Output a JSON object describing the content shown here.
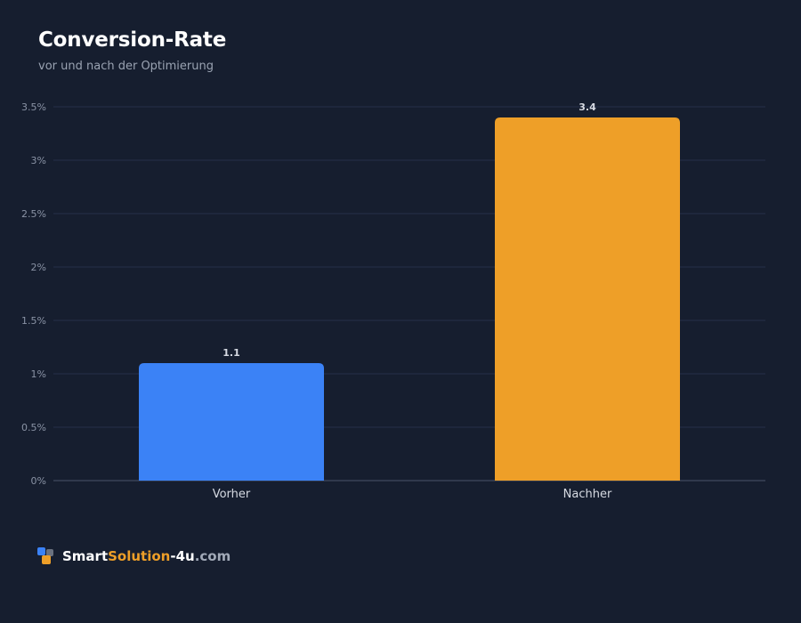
{
  "header": {
    "title": "Conversion-Rate",
    "subtitle": "vor und nach der Optimierung"
  },
  "chart_data": {
    "type": "bar",
    "categories": [
      "Vorher",
      "Nachher"
    ],
    "values": [
      1.1,
      3.4
    ],
    "value_labels": [
      "1.1",
      "3.4"
    ],
    "bar_colors": [
      "#3b82f6",
      "#ee9f28"
    ],
    "ylim": [
      0,
      3.5
    ],
    "yticks": [
      0,
      0.5,
      1,
      1.5,
      2,
      2.5,
      3,
      3.5
    ],
    "ytick_labels": [
      "0%",
      "0.5%",
      "1%",
      "1.5%",
      "2%",
      "2.5%",
      "3%",
      "3.5%"
    ],
    "grid": true,
    "xlabel": "",
    "ylabel": ""
  },
  "branding": {
    "part1": "Smart",
    "part2": "Solution",
    "part3": "-4u",
    "part4": ".com",
    "icon": "logo-squares-icon",
    "icon_colors": [
      "#3b82f6",
      "#6b7280",
      "#ee9f28"
    ]
  },
  "colors": {
    "background": "#161e2f",
    "grid": "#26304a",
    "axis": "#4a5468",
    "tick_text": "#8a93a5",
    "category_text": "#d6dae2",
    "value_label": "#d6dae2"
  }
}
